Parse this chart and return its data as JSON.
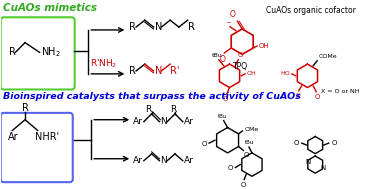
{
  "title_top": "CuAOs mimetics",
  "title_bottom": "Bioinspired catalysts that surpass the activity of CuAOs",
  "cofactor_label": "CuAOs organic cofactor",
  "tpq_label": "TPQ",
  "x_label": "X = O or NH",
  "coMe_label": "COMe",
  "OMe_label": "OMe",
  "bg_color": "#ffffff",
  "red_color": "#cc0000",
  "black_color": "#000000",
  "blue_title_color": "#0000dd",
  "green_title_color": "#33aa22",
  "green_box_color": "#55cc33",
  "blue_box_color": "#5566ee",
  "gray_color": "#888888"
}
